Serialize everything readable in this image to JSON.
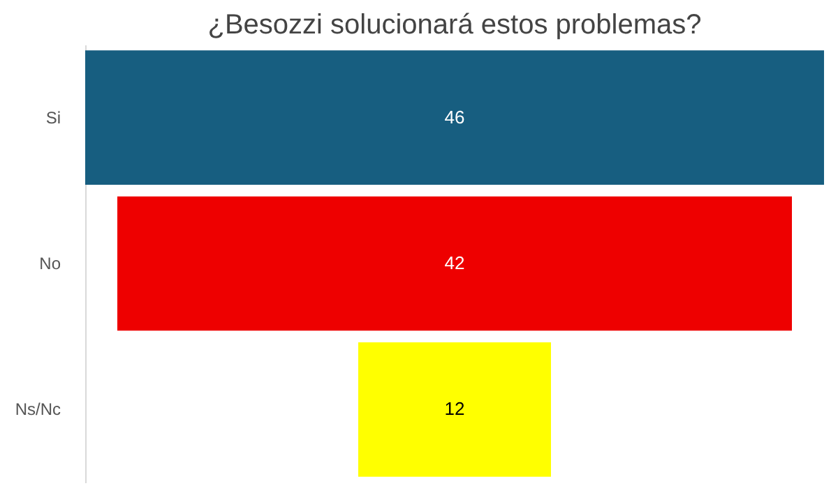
{
  "chart_data": {
    "type": "other",
    "title": "¿Besozzi solucionará estos problemas?",
    "categories": [
      "Si",
      "No",
      "Ns/Nc"
    ],
    "values": [
      46,
      42,
      12
    ],
    "colors": [
      "#175e80",
      "#ee0000",
      "#ffff00"
    ],
    "data_labels": true
  }
}
